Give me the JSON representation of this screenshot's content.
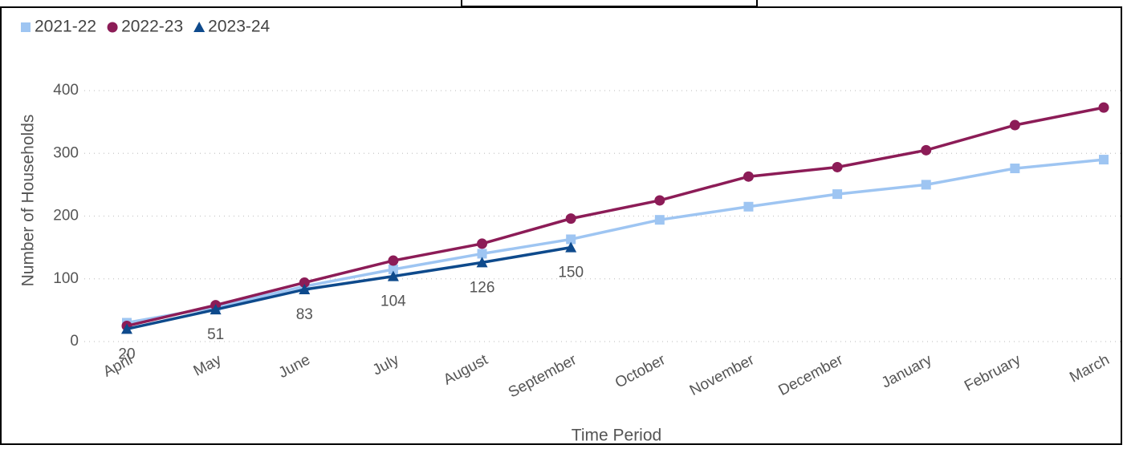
{
  "chart_data": {
    "type": "line",
    "y_label": "Number of Households",
    "x_label": "Time Period",
    "categories": [
      "April",
      "May",
      "June",
      "July",
      "August",
      "September",
      "October",
      "November",
      "December",
      "January",
      "February",
      "March"
    ],
    "series": [
      {
        "name": "2021-22",
        "color": "#9ec5f2",
        "marker": "square",
        "values": [
          30,
          55,
          88,
          115,
          140,
          163,
          194,
          215,
          235,
          250,
          276,
          290
        ]
      },
      {
        "name": "2022-23",
        "color": "#8c1c57",
        "marker": "circle",
        "values": [
          25,
          58,
          94,
          129,
          156,
          196,
          225,
          263,
          278,
          305,
          345,
          373
        ]
      },
      {
        "name": "2023-24",
        "color": "#0e4a8c",
        "marker": "triangle",
        "data_labels": true,
        "values": [
          20,
          51,
          83,
          104,
          126,
          150,
          null,
          null,
          null,
          null,
          null,
          null
        ]
      }
    ],
    "ylim": [
      0,
      400
    ],
    "yticks": [
      0,
      100,
      200,
      300,
      400
    ],
    "grid": true
  }
}
